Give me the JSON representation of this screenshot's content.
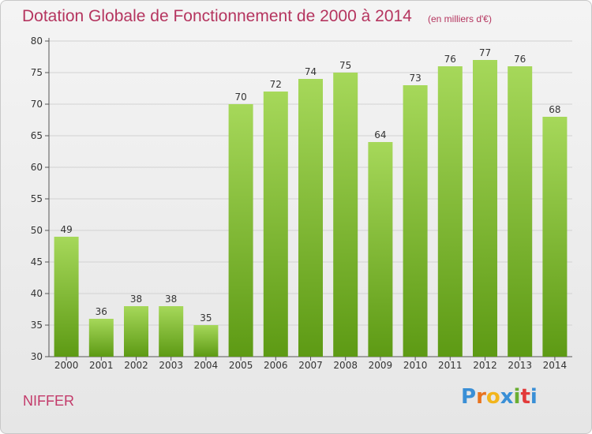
{
  "title": "Dotation Globale de Fonctionnement de 2000 à 2014",
  "subtitle": "(en milliers d'€)",
  "commune": "NIFFER",
  "logo": {
    "letters": [
      "P",
      "r",
      "o",
      "x",
      "i",
      "t",
      "i"
    ],
    "colors": [
      "#3a8fd6",
      "#e8731f",
      "#f2b51c",
      "#3a8fd6",
      "#6aae32",
      "#e23a3a",
      "#3a8fd6"
    ]
  },
  "colors": {
    "bar_top": "#a6d85a",
    "bar_bottom": "#5d9a14",
    "title": "#b5355f",
    "grid": "#d2d2d2"
  },
  "chart_data": {
    "type": "bar",
    "categories": [
      "2000",
      "2001",
      "2002",
      "2003",
      "2004",
      "2005",
      "2006",
      "2007",
      "2008",
      "2009",
      "2010",
      "2011",
      "2012",
      "2013",
      "2014"
    ],
    "values": [
      49,
      36,
      38,
      38,
      35,
      70,
      72,
      74,
      75,
      64,
      73,
      76,
      77,
      76,
      68
    ],
    "ylim": [
      30,
      80
    ],
    "yticks": [
      30,
      35,
      40,
      45,
      50,
      55,
      60,
      65,
      70,
      75,
      80
    ],
    "grid": true,
    "xlabel": "",
    "ylabel": ""
  }
}
